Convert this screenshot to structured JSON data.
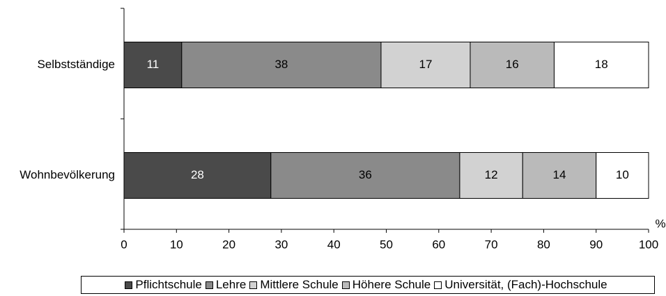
{
  "chart_data": {
    "type": "stacked_barh",
    "categories": [
      "Selbstständige",
      "Wohnbevölkerung"
    ],
    "series": [
      {
        "name": "Pflichtschule",
        "color": "#4a4a4a",
        "values": [
          11,
          28
        ]
      },
      {
        "name": "Lehre",
        "color": "#8a8a8a",
        "values": [
          38,
          36
        ]
      },
      {
        "name": "Mittlere Schule",
        "color": "#d2d2d2",
        "values": [
          17,
          12
        ]
      },
      {
        "name": "Höhere Schule",
        "color": "#bababa",
        "values": [
          16,
          14
        ]
      },
      {
        "name": "Universität, (Fach)-Hochschule",
        "color": "#ffffff",
        "values": [
          18,
          10
        ]
      }
    ],
    "xlabel": "%",
    "xlim": [
      0,
      100
    ],
    "xticks": [
      0,
      10,
      20,
      30,
      40,
      50,
      60,
      70,
      80,
      90,
      100
    ],
    "legend": "bottom"
  }
}
